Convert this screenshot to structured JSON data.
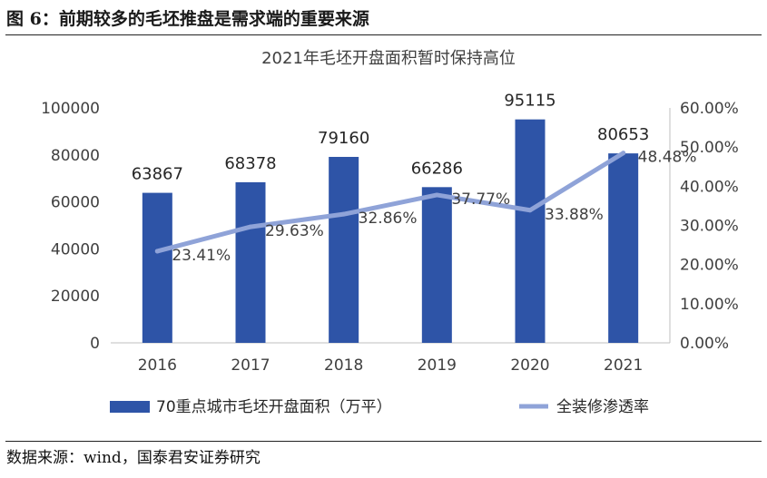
{
  "figure": {
    "title": "图 6：前期较多的毛坯推盘是需求端的重要来源",
    "source": "数据来源：wind，国泰君安证券研究"
  },
  "chart_data": {
    "type": "bar",
    "title": "2021年毛坯开盘面积暂时保持高位",
    "categories": [
      "2016",
      "2017",
      "2018",
      "2019",
      "2020",
      "2021"
    ],
    "series": [
      {
        "name": "70重点城市毛坯开盘面积（万平）",
        "type": "bar",
        "axis": "left",
        "color": "#2e54a7",
        "values": [
          63867,
          68378,
          79160,
          66286,
          95115,
          80653
        ],
        "labels": [
          "63867",
          "68378",
          "79160",
          "66286",
          "95115",
          "80653"
        ]
      },
      {
        "name": "全装修渗透率",
        "type": "line",
        "axis": "right",
        "color": "#8fa3d8",
        "values": [
          23.41,
          29.63,
          32.86,
          37.77,
          33.88,
          48.48
        ],
        "labels": [
          "23.41%",
          "29.63%",
          "32.86%",
          "37.77%",
          "33.88%",
          "48.48%"
        ]
      }
    ],
    "y_left": {
      "range": [
        0,
        100000
      ],
      "ticks": [
        0,
        20000,
        40000,
        60000,
        80000,
        100000
      ],
      "tick_labels": [
        "0",
        "20000",
        "40000",
        "60000",
        "80000",
        "100000"
      ]
    },
    "y_right": {
      "range": [
        0,
        60
      ],
      "ticks": [
        0,
        10,
        20,
        30,
        40,
        50,
        60
      ],
      "tick_labels": [
        "0.00%",
        "10.00%",
        "20.00%",
        "30.00%",
        "40.00%",
        "50.00%",
        "60.00%"
      ]
    },
    "grid": false,
    "legend": "bottom"
  }
}
